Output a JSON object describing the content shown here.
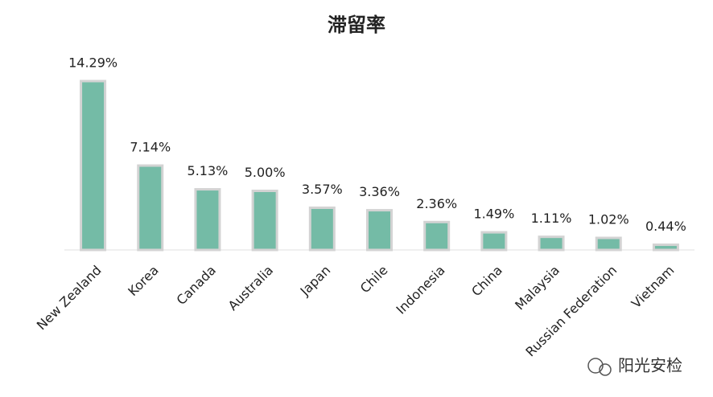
{
  "chart_data": {
    "type": "bar",
    "title": "滞留率",
    "categories": [
      "New Zealand",
      "Korea",
      "Canada",
      "Australia",
      "Japan",
      "Chile",
      "Indonesia",
      "China",
      "Malaysia",
      "Russian Federation",
      "Vietnam"
    ],
    "values": [
      14.29,
      7.14,
      5.13,
      5.0,
      3.57,
      3.36,
      2.36,
      1.49,
      1.11,
      1.02,
      0.44
    ],
    "value_labels": [
      "14.29%",
      "7.14%",
      "5.13%",
      "5.00%",
      "3.57%",
      "3.36%",
      "2.36%",
      "1.49%",
      "1.11%",
      "1.02%",
      "0.44%"
    ],
    "color": "#74bba6",
    "ylim": [
      0,
      15
    ]
  },
  "watermark": "阳光安检"
}
